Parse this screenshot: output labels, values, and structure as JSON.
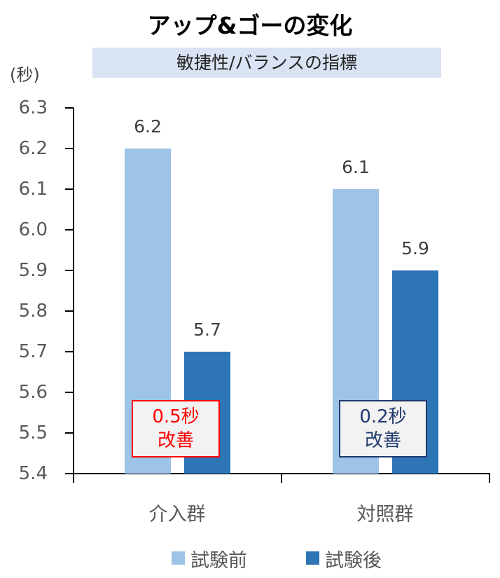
{
  "chart_data": {
    "type": "bar",
    "title": "アップ&ゴーの変化",
    "subtitle": "敏捷性/バランスの指標",
    "ylabel": "(秒)",
    "xlabel": "",
    "ylim": [
      5.4,
      6.3
    ],
    "yticks": [
      "6.3",
      "6.2",
      "6.1",
      "6.0",
      "5.9",
      "5.8",
      "5.7",
      "5.6",
      "5.5",
      "5.4"
    ],
    "categories": [
      "介入群",
      "対照群"
    ],
    "series": [
      {
        "name": "試験前",
        "values": [
          6.2,
          6.1
        ],
        "labels": [
          "6.2",
          "6.1"
        ],
        "color": "#9dc3e6"
      },
      {
        "name": "試験後",
        "values": [
          5.7,
          5.9
        ],
        "labels": [
          "5.7",
          "5.9"
        ],
        "color": "#2e75b6"
      }
    ],
    "annotations": [
      {
        "line1": "0.5秒",
        "line2": "改善",
        "color": "#ff0000",
        "category": "介入群"
      },
      {
        "line1": "0.2秒",
        "line2": "改善",
        "color": "#1f3a6e",
        "category": "対照群"
      }
    ],
    "legend": {
      "position": "bottom",
      "entries": [
        "試験前",
        "試験後"
      ]
    },
    "grid": false
  }
}
